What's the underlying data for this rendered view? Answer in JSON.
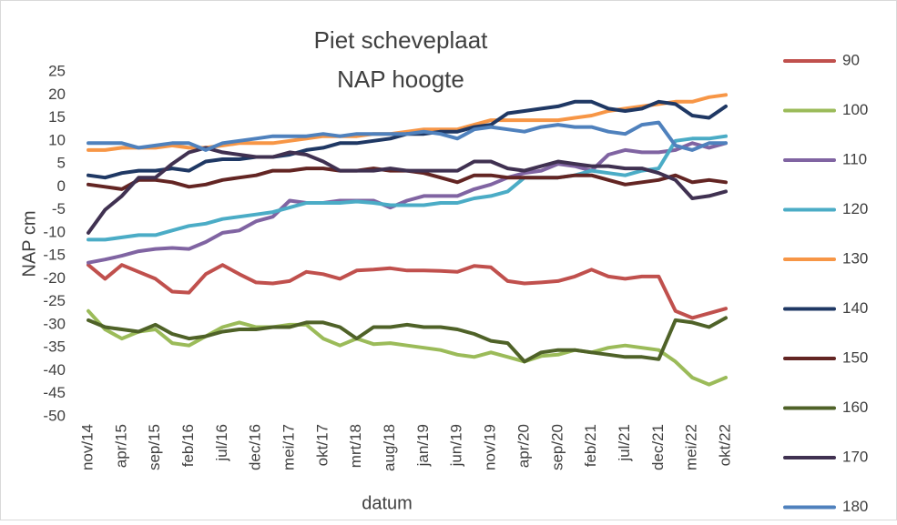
{
  "chart_data": {
    "type": "line",
    "title": [
      "Piet scheveplaat",
      "NAP hoogte"
    ],
    "x_label": "datum",
    "y_label": "NAP cm",
    "categories": [
      "nov/14",
      null,
      "apr/15",
      null,
      "sep/15",
      null,
      "feb/16",
      null,
      "jul/16",
      null,
      "dec/16",
      null,
      "mei/17",
      null,
      "okt/17",
      null,
      "mrt/18",
      null,
      "aug/18",
      null,
      "jan/19",
      null,
      "jun/19",
      null,
      "nov/19",
      null,
      "apr/20",
      null,
      "sep/20",
      null,
      "feb/21",
      null,
      "jul/21",
      null,
      "dec/21",
      null,
      "mei/22",
      null,
      "okt/22"
    ],
    "ylim": [
      -50,
      25
    ],
    "yticks": [
      25,
      20,
      15,
      10,
      5,
      0,
      -5,
      -10,
      -15,
      -20,
      -25,
      -30,
      -35,
      -40,
      -45,
      -50
    ],
    "grid": false,
    "legend": "right",
    "series": [
      {
        "name": "90",
        "color": "#c0504d",
        "values": [
          -17,
          -20,
          -17,
          -18.5,
          -20,
          -22.8,
          -23,
          -19,
          -17,
          -19,
          -20.8,
          -21,
          -20.5,
          -18.5,
          -19,
          -20,
          -18.2,
          -18,
          -17.7,
          -18.2,
          -18.2,
          -18.3,
          -18.5,
          -17.2,
          -17.5,
          -20.5,
          -21,
          -20.8,
          -20.5,
          -19.5,
          -18,
          -19.5,
          -20,
          -19.5,
          -19.5,
          -27,
          -28.5,
          -27.5,
          -26.5
        ]
      },
      {
        "name": "100",
        "color": "#9bbb59",
        "values": [
          -27,
          -31,
          -33,
          -31.5,
          -31,
          -34,
          -34.5,
          -32.5,
          -30.5,
          -29.5,
          -30.5,
          -30.5,
          -30,
          -30,
          -33,
          -34.5,
          -33,
          -34.2,
          -34,
          -34.5,
          -35,
          -35.5,
          -36.5,
          -37,
          -36,
          -37,
          -38,
          -36.8,
          -36.5,
          -35.5,
          -36,
          -35,
          -34.5,
          -35,
          -35.5,
          -38,
          -41.5,
          -43,
          -41.5
        ]
      },
      {
        "name": "110",
        "color": "#8064a2",
        "values": [
          -16.5,
          -15.8,
          -15,
          -14,
          -13.5,
          -13.3,
          -13.5,
          -12,
          -10,
          -9.5,
          -7.5,
          -6.5,
          -3,
          -3.5,
          -3.5,
          -3,
          -3,
          -3,
          -4.5,
          -3,
          -2,
          -2,
          -2,
          -0.5,
          0.5,
          2,
          3,
          3.5,
          5,
          4.5,
          3.5,
          7,
          8,
          7.5,
          7.5,
          8,
          9.5,
          8.5,
          9.5
        ]
      },
      {
        "name": "120",
        "color": "#4bacc6",
        "values": [
          -11.5,
          -11.5,
          -11,
          -10.5,
          -10.5,
          -9.5,
          -8.5,
          -8,
          -7,
          -6.5,
          -6,
          -5.5,
          -4.5,
          -3.5,
          -3.5,
          -3.5,
          -3.2,
          -3.5,
          -4,
          -4,
          -4,
          -3.5,
          -3.5,
          -2.5,
          -2,
          -1,
          2,
          2,
          2,
          2.5,
          3.5,
          3,
          2.5,
          3.5,
          4,
          10,
          10.5,
          10.5,
          11
        ]
      },
      {
        "name": "130",
        "color": "#f79646",
        "values": [
          8,
          8,
          8.5,
          8.5,
          8.5,
          9,
          8.5,
          8.5,
          9,
          9.5,
          9.5,
          9.5,
          10,
          10.5,
          11,
          11,
          11,
          11.5,
          11.5,
          12,
          12.5,
          12.5,
          12.5,
          13.5,
          14.5,
          14.5,
          14.5,
          14.5,
          14.5,
          15,
          15.5,
          16.5,
          17,
          17.5,
          18,
          18.5,
          18.5,
          19.5,
          20
        ]
      },
      {
        "name": "140",
        "color": "#1f3864",
        "values": [
          2.5,
          2,
          3,
          3.5,
          3.5,
          4,
          3.5,
          5.5,
          6,
          6,
          6.5,
          6.5,
          7,
          8,
          8.5,
          9.5,
          9.5,
          10,
          10.5,
          11.5,
          11.5,
          12,
          12,
          13,
          13.5,
          16,
          16.5,
          17,
          17.5,
          18.5,
          18.5,
          17,
          16.5,
          17,
          18.5,
          18,
          15.5,
          15,
          17.5
        ]
      },
      {
        "name": "150",
        "color": "#632523",
        "values": [
          0.5,
          0,
          -0.5,
          1.5,
          1.5,
          1,
          0,
          0.5,
          1.5,
          2,
          2.5,
          3.5,
          3.5,
          4,
          4,
          3.5,
          3.5,
          4,
          3.5,
          3.5,
          3,
          2,
          1,
          2.5,
          2.5,
          2,
          2,
          2,
          2,
          2.5,
          2.5,
          1.5,
          0.5,
          1,
          1.5,
          2.5,
          1,
          1.5,
          1
        ]
      },
      {
        "name": "160",
        "color": "#4f6228",
        "values": [
          -29,
          -30.5,
          -31,
          -31.5,
          -30,
          -32,
          -33,
          -32.5,
          -31.5,
          -31,
          -31,
          -30.5,
          -30.5,
          -29.5,
          -29.5,
          -30.5,
          -33,
          -30.5,
          -30.5,
          -30,
          -30.5,
          -30.5,
          -31,
          -32,
          -33.5,
          -34,
          -38,
          -36,
          -35.5,
          -35.5,
          -36,
          -36.5,
          -37,
          -37,
          -37.5,
          -29,
          -29.5,
          -30.5,
          -28.5
        ]
      },
      {
        "name": "170",
        "color": "#403151",
        "values": [
          -10,
          -5,
          -2,
          2,
          2,
          5,
          7.5,
          8.5,
          7.5,
          7,
          6.5,
          6.5,
          7.5,
          7,
          5.5,
          3.5,
          3.5,
          3.5,
          4,
          3.5,
          3.5,
          3.5,
          3.5,
          5.5,
          5.5,
          4,
          3.5,
          4.5,
          5.5,
          5,
          4.5,
          4.5,
          4,
          4,
          3,
          1.5,
          -2.5,
          -2,
          -1
        ]
      },
      {
        "name": "180",
        "color": "#4f81bd",
        "values": [
          9.5,
          9.5,
          9.5,
          8.5,
          9,
          9.5,
          9.5,
          8,
          9.5,
          10,
          10.5,
          11,
          11,
          11,
          11.5,
          11,
          11.5,
          11.5,
          11.5,
          11.5,
          12,
          11.5,
          10.5,
          12.5,
          13,
          12.5,
          12,
          13,
          13.5,
          13,
          13,
          12,
          11.5,
          13.5,
          14,
          9,
          8,
          9.5,
          9.5
        ]
      }
    ]
  }
}
